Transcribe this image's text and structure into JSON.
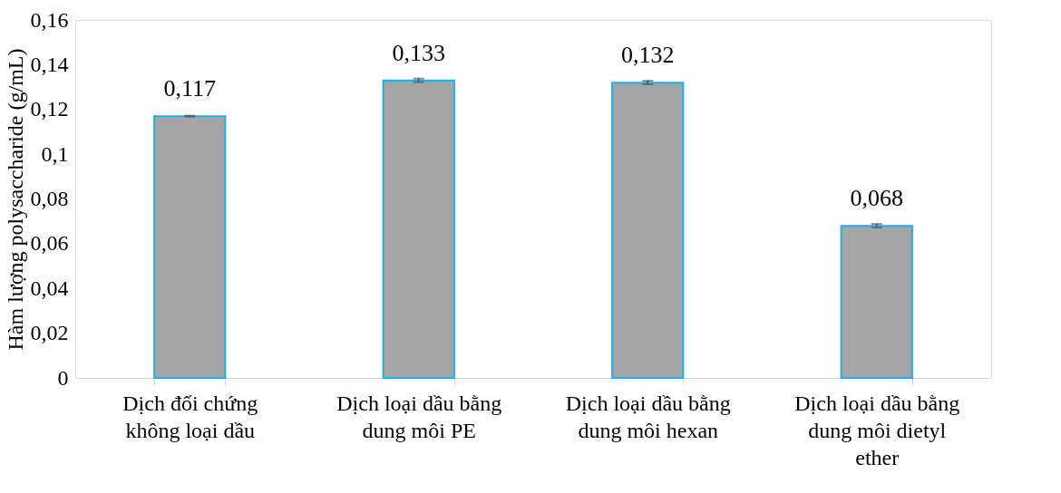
{
  "chart_data": {
    "type": "bar",
    "ylabel": "Hàm lượng polysaccharide (g/mL)",
    "categories": [
      "Dịch đối chứng không loại dầu",
      "Dịch loại dầu bằng dung môi PE",
      "Dịch loại dầu bằng dung môi hexan",
      "Dịch loại dầu bằng dung môi dietyl ether"
    ],
    "values": [
      0.117,
      0.133,
      0.132,
      0.068
    ],
    "errors": [
      0.0002,
      0.0008,
      0.0008,
      0.0008
    ],
    "value_labels": [
      "0,117",
      "0,133",
      "0,132",
      "0,068"
    ],
    "color": "#a5a5a5",
    "ylim": [
      0,
      0.16
    ],
    "yticks": [
      {
        "value": 0,
        "label": "0"
      },
      {
        "value": 0.02,
        "label": "0,02"
      },
      {
        "value": 0.04,
        "label": "0,04"
      },
      {
        "value": 0.06,
        "label": "0,06"
      },
      {
        "value": 0.08,
        "label": "0,08"
      },
      {
        "value": 0.1,
        "label": "0,1"
      },
      {
        "value": 0.12,
        "label": "0,12"
      },
      {
        "value": 0.14,
        "label": "0,14"
      },
      {
        "value": 0.16,
        "label": "0,16"
      }
    ],
    "grid": false
  }
}
